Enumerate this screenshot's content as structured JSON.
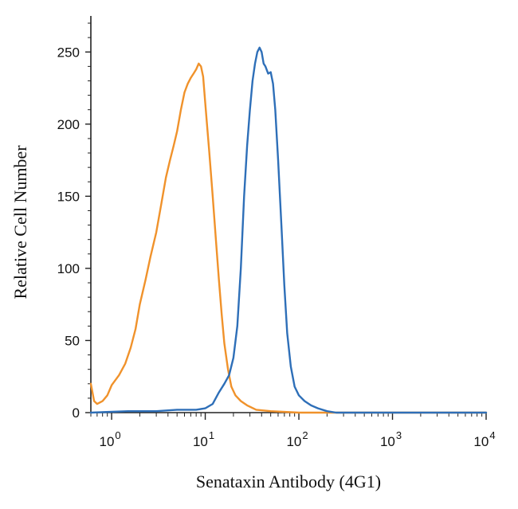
{
  "chart_data": {
    "type": "line",
    "title": "",
    "xlabel": "Senataxin Antibody (4G1)",
    "ylabel": "Relative Cell Number",
    "x_scale": "log",
    "xlim": [
      0.6,
      10000
    ],
    "ylim": [
      0,
      275
    ],
    "x_ticks": [
      {
        "value": 1,
        "base": "10",
        "exp": "0"
      },
      {
        "value": 10,
        "base": "10",
        "exp": "1"
      },
      {
        "value": 100,
        "base": "10",
        "exp": "2"
      },
      {
        "value": 1000,
        "base": "10",
        "exp": "3"
      },
      {
        "value": 10000,
        "base": "10",
        "exp": "4"
      }
    ],
    "y_ticks": [
      0,
      50,
      100,
      150,
      200,
      250
    ],
    "grid": false,
    "legend": "none",
    "series": [
      {
        "color": "#f0922b",
        "points": [
          [
            0.6,
            20
          ],
          [
            0.62,
            15
          ],
          [
            0.65,
            8
          ],
          [
            0.7,
            6
          ],
          [
            0.8,
            8
          ],
          [
            0.9,
            12
          ],
          [
            1.0,
            19
          ],
          [
            1.2,
            26
          ],
          [
            1.4,
            34
          ],
          [
            1.6,
            45
          ],
          [
            1.8,
            58
          ],
          [
            2.0,
            75
          ],
          [
            2.3,
            92
          ],
          [
            2.6,
            108
          ],
          [
            3.0,
            125
          ],
          [
            3.4,
            145
          ],
          [
            3.8,
            163
          ],
          [
            4.2,
            175
          ],
          [
            4.6,
            185
          ],
          [
            5.0,
            195
          ],
          [
            5.5,
            210
          ],
          [
            6.0,
            222
          ],
          [
            6.5,
            228
          ],
          [
            7.0,
            232
          ],
          [
            7.5,
            235
          ],
          [
            8.0,
            238
          ],
          [
            8.5,
            242
          ],
          [
            9.0,
            240
          ],
          [
            9.5,
            233
          ],
          [
            10.0,
            215
          ],
          [
            10.5,
            198
          ],
          [
            11.0,
            182
          ],
          [
            12.0,
            150
          ],
          [
            13.0,
            120
          ],
          [
            14.0,
            92
          ],
          [
            15.0,
            68
          ],
          [
            16.0,
            48
          ],
          [
            17.5,
            30
          ],
          [
            19.0,
            18
          ],
          [
            21.0,
            12
          ],
          [
            24.0,
            8
          ],
          [
            28.0,
            5
          ],
          [
            35.0,
            2
          ],
          [
            50.0,
            1
          ],
          [
            100.0,
            0
          ],
          [
            10000,
            0
          ]
        ]
      },
      {
        "color": "#2e6fb8",
        "points": [
          [
            0.6,
            0
          ],
          [
            1.5,
            1
          ],
          [
            3.0,
            1
          ],
          [
            5.0,
            2
          ],
          [
            8.0,
            2
          ],
          [
            10.0,
            3
          ],
          [
            12.0,
            6
          ],
          [
            14.0,
            14
          ],
          [
            16.0,
            20
          ],
          [
            18.0,
            26
          ],
          [
            20.0,
            38
          ],
          [
            22.0,
            60
          ],
          [
            24.0,
            100
          ],
          [
            26.0,
            150
          ],
          [
            28.0,
            185
          ],
          [
            30.0,
            210
          ],
          [
            32.0,
            230
          ],
          [
            34.0,
            242
          ],
          [
            36.0,
            250
          ],
          [
            38.0,
            253
          ],
          [
            40.0,
            250
          ],
          [
            42.0,
            242
          ],
          [
            44.0,
            240
          ],
          [
            47.0,
            235
          ],
          [
            50.0,
            236
          ],
          [
            53.0,
            228
          ],
          [
            56.0,
            210
          ],
          [
            60.0,
            175
          ],
          [
            65.0,
            130
          ],
          [
            70.0,
            88
          ],
          [
            75.0,
            55
          ],
          [
            82.0,
            32
          ],
          [
            90.0,
            18
          ],
          [
            100.0,
            12
          ],
          [
            115.0,
            8
          ],
          [
            135.0,
            5
          ],
          [
            160.0,
            3
          ],
          [
            200.0,
            1
          ],
          [
            250.0,
            0
          ],
          [
            10000,
            0
          ]
        ]
      }
    ]
  }
}
